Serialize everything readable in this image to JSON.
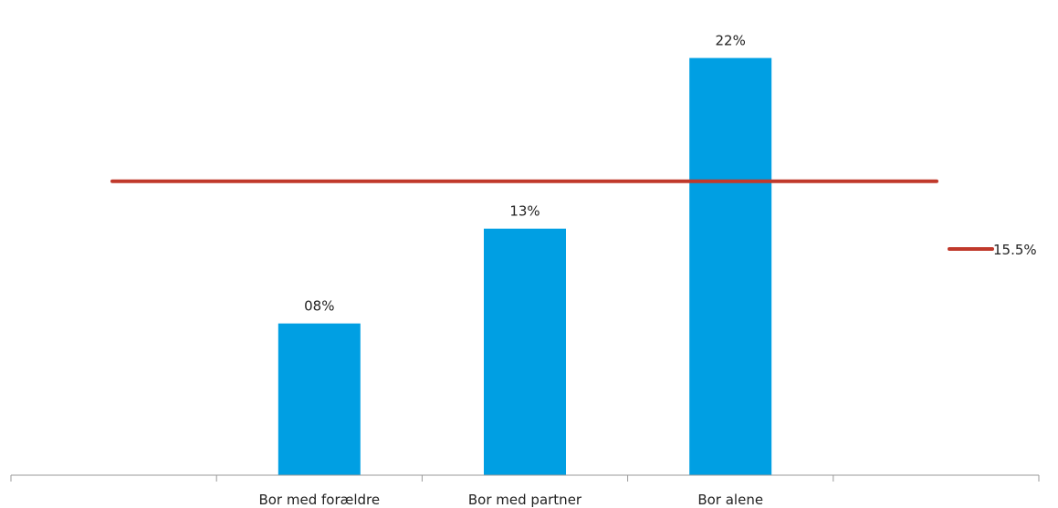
{
  "chart_data": {
    "type": "bar",
    "categories": [
      "",
      "Bor med forældre",
      "Bor med partner",
      "Bor alene",
      ""
    ],
    "values": [
      null,
      8,
      13,
      22,
      null
    ],
    "value_labels": [
      "",
      "08%",
      "13%",
      "22%",
      ""
    ],
    "ylim": [
      0,
      24
    ],
    "grid": false,
    "bar_color": "#009FE3",
    "reference_line": {
      "value": 15.5,
      "label": "15.5%",
      "color": "#C0392B",
      "legend_position": "right"
    },
    "title": "",
    "xlabel": "",
    "ylabel": ""
  }
}
